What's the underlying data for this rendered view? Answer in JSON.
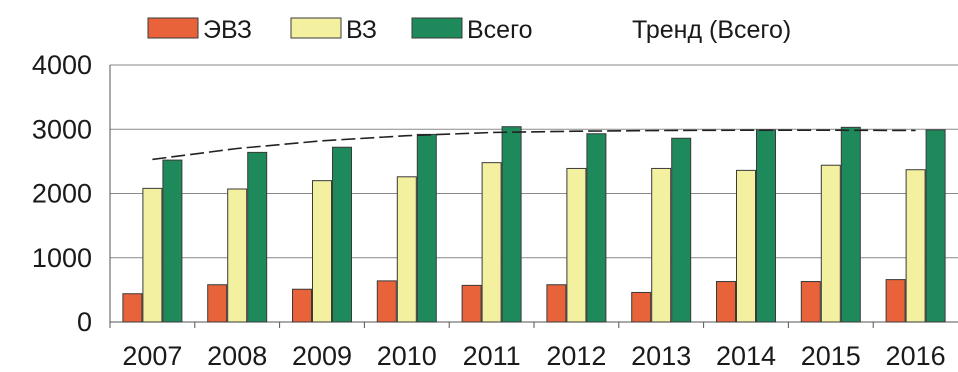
{
  "chart_data": {
    "type": "bar",
    "categories": [
      "2007",
      "2008",
      "2009",
      "2010",
      "2011",
      "2012",
      "2013",
      "2014",
      "2015",
      "2016"
    ],
    "series": [
      {
        "name": "ЭВЗ",
        "color": "#e8623a",
        "values": [
          440,
          580,
          510,
          640,
          570,
          580,
          460,
          630,
          630,
          660
        ]
      },
      {
        "name": "ВЗ",
        "color": "#f3f0a0",
        "values": [
          2080,
          2070,
          2200,
          2260,
          2480,
          2390,
          2390,
          2360,
          2440,
          2370
        ]
      },
      {
        "name": "Всего",
        "color": "#1e8a5c",
        "values": [
          2520,
          2640,
          2720,
          2920,
          3040,
          2930,
          2860,
          2990,
          3030,
          2990
        ]
      }
    ],
    "trend": {
      "name": "Тренд (Всего)",
      "style": "dashed",
      "values": [
        2530,
        2700,
        2820,
        2900,
        2950,
        2970,
        2980,
        2985,
        2985,
        2980
      ]
    },
    "ylim": [
      0,
      4000
    ],
    "yticks": [
      0,
      1000,
      2000,
      3000,
      4000
    ],
    "xlabel": "",
    "ylabel": "",
    "grid": "horizontal",
    "legend_position": "top"
  }
}
